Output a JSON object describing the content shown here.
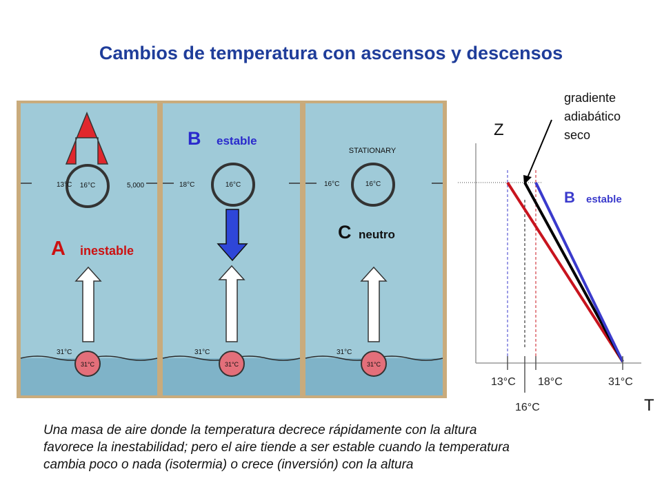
{
  "title": "Cambios de temperatura con ascensos y descensos",
  "panels": {
    "a": {
      "letter": "A",
      "word": "inestable",
      "temp_top": "13°C",
      "temp_center": "16°C",
      "altitude": "5,000",
      "temp_surface": "31°C"
    },
    "b": {
      "letter": "B",
      "word": "estable",
      "temp_top": "18°C",
      "temp_center": "16°C",
      "temp_surface": "31°C"
    },
    "c": {
      "letter": "C",
      "word": "neutro",
      "temp_top": "16°C",
      "temp_center": "16°C",
      "stationary": "STATIONARY",
      "temp_surface": "31°C"
    }
  },
  "graph": {
    "z_label": "Z",
    "t_label": "T",
    "annotation": [
      "gradiente",
      "adiabático",
      "seco"
    ],
    "b_letter": "B",
    "b_word": "estable",
    "x_ticks": [
      "13°C",
      "18°C",
      "31°C"
    ],
    "x_tick_low": "16°C",
    "colors": {
      "inestable": "#c8141e",
      "adiabatico": "#000000",
      "estable": "#3a3acc"
    }
  },
  "caption": [
    "Una masa de aire donde la temperatura decrece rápidamente con la altura",
    "favorece la inestabilidad; pero el aire tiende a ser estable cuando la temperatura",
    "cambia poco o nada (isotermia) o crece (inversión) con la altura"
  ]
}
